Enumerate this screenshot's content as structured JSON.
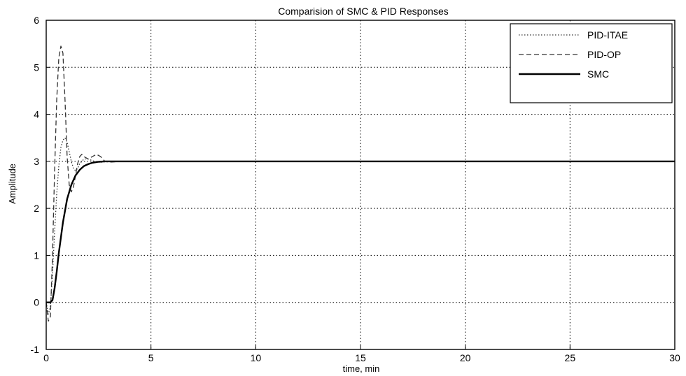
{
  "chart_data": {
    "type": "line",
    "title": "Comparision of SMC & PID Responses",
    "xlabel": "time, min",
    "ylabel": "Amplitude",
    "xlim": [
      0,
      30
    ],
    "ylim": [
      -1,
      6
    ],
    "xticks": [
      0,
      5,
      10,
      15,
      20,
      25,
      30
    ],
    "yticks": [
      -1,
      0,
      1,
      2,
      3,
      4,
      5,
      6
    ],
    "grid": true,
    "legend_position": "top-right",
    "series": [
      {
        "name": "PID-ITAE",
        "style": "dotted",
        "x": [
          0,
          0.1,
          0.2,
          0.3,
          0.4,
          0.5,
          0.6,
          0.7,
          0.8,
          0.9,
          1.0,
          1.1,
          1.2,
          1.3,
          1.4,
          1.5,
          1.6,
          1.8,
          2.0,
          2.3,
          2.6,
          3.0,
          4.0,
          6.0,
          30
        ],
        "y": [
          0,
          -0.25,
          -0.1,
          0.6,
          1.5,
          2.3,
          2.9,
          3.3,
          3.45,
          3.5,
          3.4,
          3.2,
          3.0,
          2.85,
          2.8,
          2.85,
          2.95,
          3.05,
          3.05,
          3.0,
          2.98,
          3.0,
          3.0,
          3.0,
          3.0
        ]
      },
      {
        "name": "PID-OP",
        "style": "dashed",
        "x": [
          0,
          0.1,
          0.2,
          0.3,
          0.4,
          0.5,
          0.6,
          0.7,
          0.8,
          0.9,
          1.0,
          1.1,
          1.2,
          1.3,
          1.4,
          1.5,
          1.6,
          1.7,
          1.8,
          2.0,
          2.2,
          2.4,
          2.6,
          2.8,
          3.0,
          3.5,
          4.0,
          6.0,
          30
        ],
        "y": [
          0,
          -0.4,
          -0.3,
          1.0,
          2.8,
          4.3,
          5.2,
          5.45,
          5.3,
          4.3,
          3.1,
          2.5,
          2.35,
          2.45,
          2.7,
          2.95,
          3.1,
          3.15,
          3.1,
          3.05,
          3.1,
          3.15,
          3.1,
          3.0,
          2.98,
          3.0,
          3.0,
          3.0,
          3.0
        ]
      },
      {
        "name": "SMC",
        "style": "solid",
        "x": [
          0,
          0.2,
          0.3,
          0.4,
          0.5,
          0.6,
          0.8,
          1.0,
          1.2,
          1.4,
          1.6,
          1.8,
          2.0,
          2.2,
          2.5,
          2.8,
          3.0,
          3.5,
          4.0,
          30
        ],
        "y": [
          0,
          0.0,
          0.05,
          0.3,
          0.65,
          1.05,
          1.7,
          2.2,
          2.5,
          2.7,
          2.82,
          2.9,
          2.94,
          2.97,
          2.99,
          3.0,
          3.0,
          3.0,
          3.0,
          3.0
        ]
      }
    ]
  }
}
